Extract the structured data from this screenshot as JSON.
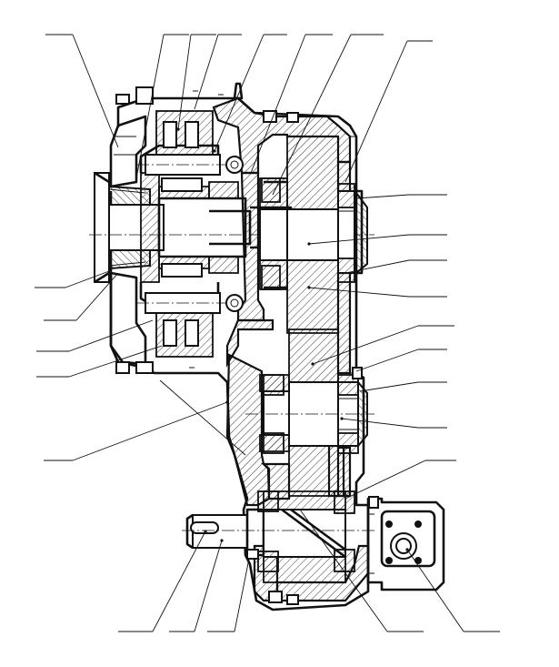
{
  "title": "",
  "colors": {
    "ink": "#111111",
    "paper": "#ffffff"
  },
  "callouts_top": 7,
  "callouts_right": 10,
  "callouts_left": 5,
  "callouts_bottom": 5
}
